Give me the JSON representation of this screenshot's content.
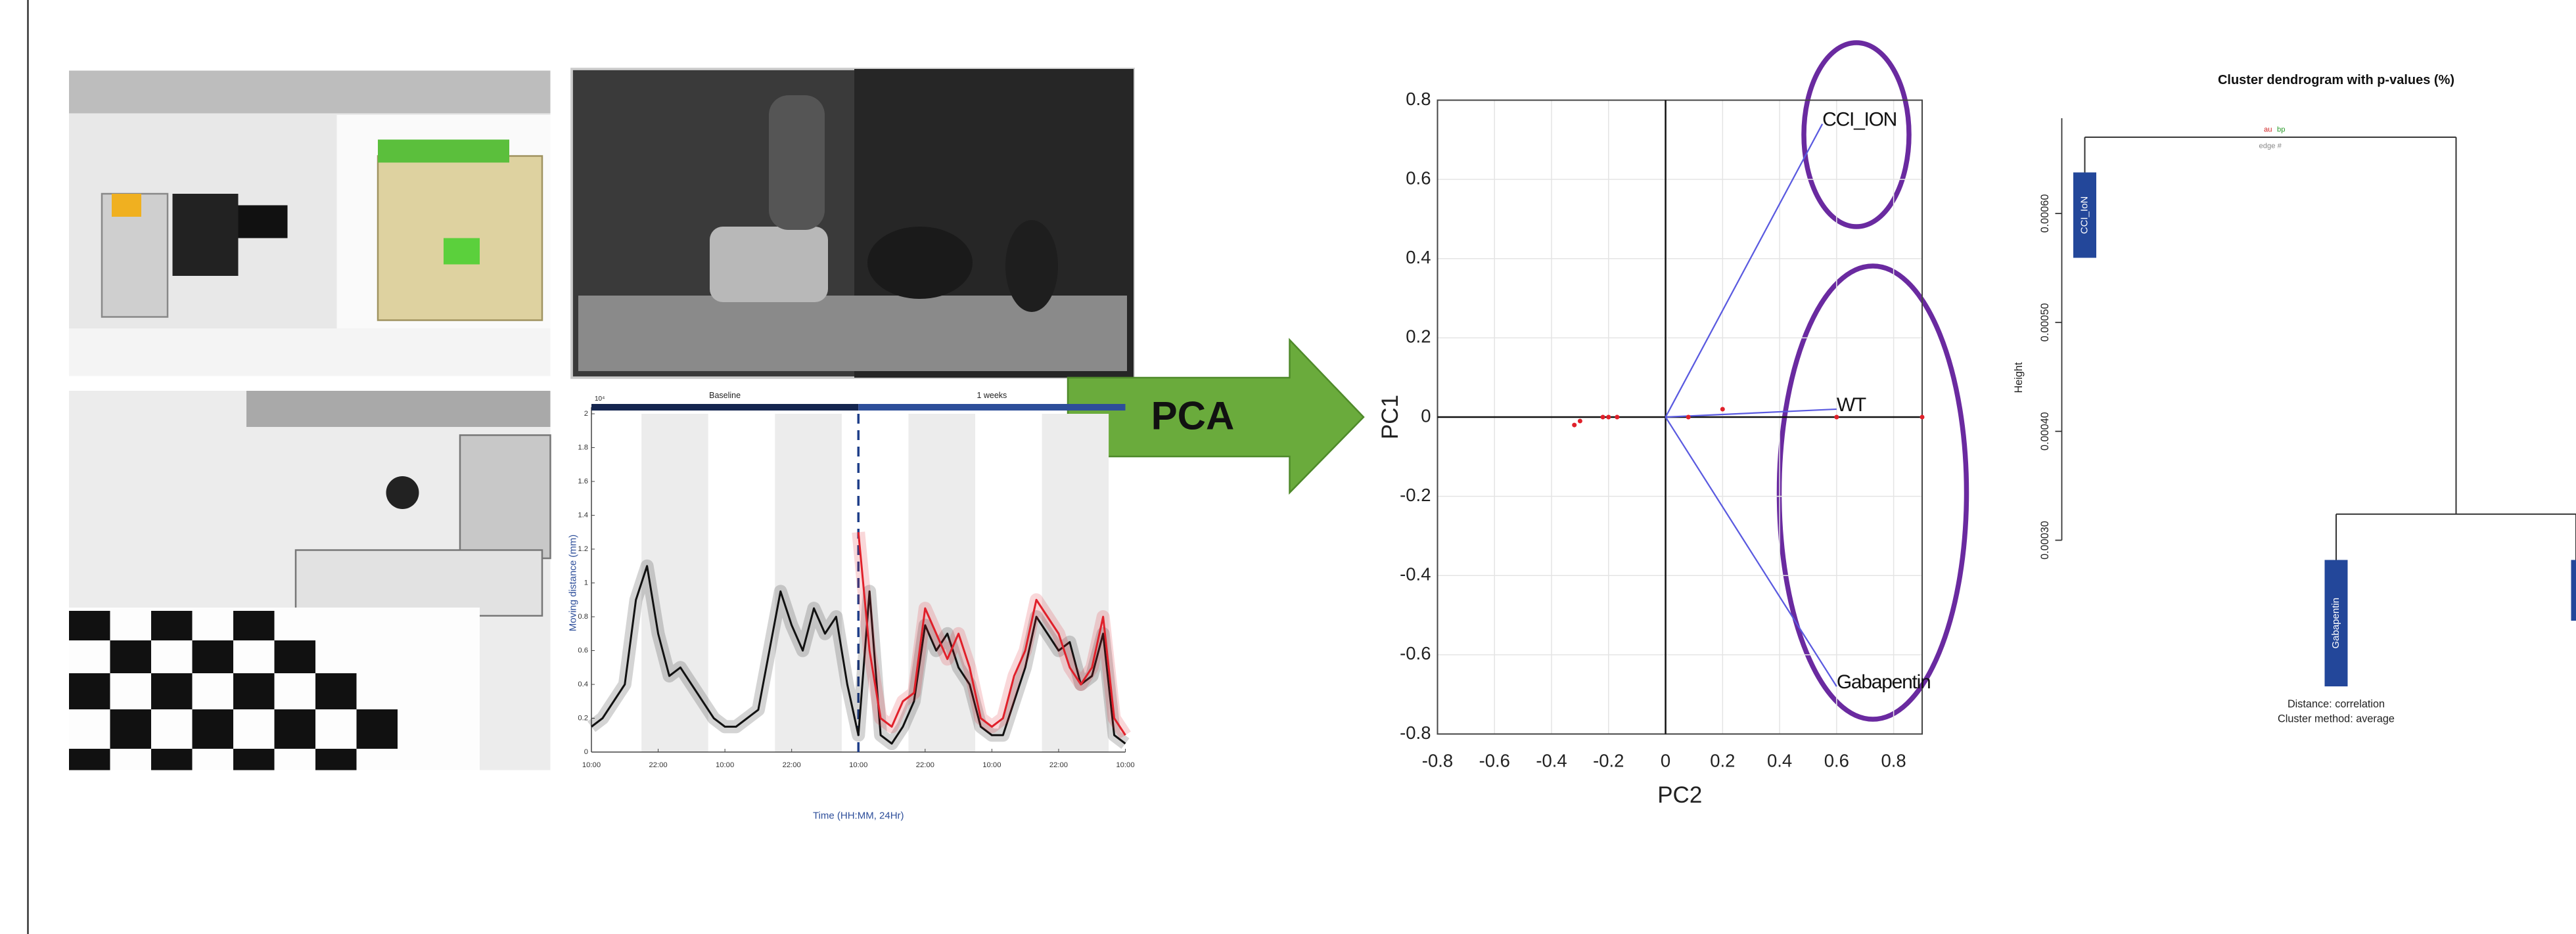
{
  "arrow_label": "PCA",
  "chart_data": [
    {
      "type": "line",
      "phases": [
        {
          "label": "Baseline",
          "start": 0,
          "end": 48
        },
        {
          "label": "1 weeks",
          "start": 48,
          "end": 96
        }
      ],
      "y_scale_label": "10⁴",
      "ylabel": "Moving distance (mm)",
      "xlabel": "Time (HH:MM, 24Hr)",
      "xlim": [
        0,
        96
      ],
      "ylim": [
        0,
        2
      ],
      "xticks": [
        {
          "value": 0,
          "label": "10:00"
        },
        {
          "value": 12,
          "label": "22:00"
        },
        {
          "value": 24,
          "label": "10:00"
        },
        {
          "value": 36,
          "label": "22:00"
        },
        {
          "value": 48,
          "label": "10:00"
        },
        {
          "value": 60,
          "label": "22:00"
        },
        {
          "value": 72,
          "label": "10:00"
        },
        {
          "value": 84,
          "label": "22:00"
        },
        {
          "value": 96,
          "label": "10:00"
        }
      ],
      "yticks": [
        0,
        0.2,
        0.4,
        0.6,
        0.8,
        1,
        1.2,
        1.4,
        1.6,
        1.8,
        2
      ],
      "night_bands": [
        [
          9,
          21
        ],
        [
          33,
          45
        ],
        [
          57,
          69
        ],
        [
          81,
          93
        ]
      ],
      "event_x": 48,
      "x": [
        0,
        2,
        4,
        6,
        8,
        10,
        12,
        14,
        16,
        18,
        20,
        22,
        24,
        26,
        28,
        30,
        32,
        34,
        36,
        38,
        40,
        42,
        44,
        46,
        48,
        50,
        52,
        54,
        56,
        58,
        60,
        62,
        64,
        66,
        68,
        70,
        72,
        74,
        76,
        78,
        80,
        82,
        84,
        86,
        88,
        90,
        92,
        94,
        96
      ],
      "series": [
        {
          "color": "#111111",
          "values": [
            0.15,
            0.2,
            0.3,
            0.4,
            0.9,
            1.1,
            0.7,
            0.45,
            0.5,
            0.4,
            0.3,
            0.2,
            0.15,
            0.15,
            0.2,
            0.25,
            0.6,
            0.95,
            0.75,
            0.6,
            0.85,
            0.7,
            0.8,
            0.4,
            0.1,
            0.95,
            0.1,
            0.05,
            0.15,
            0.3,
            0.75,
            0.6,
            0.7,
            0.5,
            0.4,
            0.15,
            0.1,
            0.1,
            0.3,
            0.5,
            0.8,
            0.7,
            0.6,
            0.65,
            0.4,
            0.45,
            0.7,
            0.1,
            0.05
          ]
        },
        {
          "color": "#e0202a",
          "values": [
            null,
            null,
            null,
            null,
            null,
            null,
            null,
            null,
            null,
            null,
            null,
            null,
            null,
            null,
            null,
            null,
            null,
            null,
            null,
            null,
            null,
            null,
            null,
            null,
            1.3,
            0.6,
            0.2,
            0.15,
            0.3,
            0.35,
            0.85,
            0.7,
            0.55,
            0.7,
            0.5,
            0.2,
            0.15,
            0.2,
            0.45,
            0.6,
            0.9,
            0.8,
            0.7,
            0.5,
            0.4,
            0.5,
            0.8,
            0.2,
            0.1
          ]
        }
      ]
    },
    {
      "type": "biplot",
      "xlabel": "PC2",
      "ylabel": "PC1",
      "xlim": [
        -0.8,
        0.9
      ],
      "ylim": [
        -0.8,
        0.8
      ],
      "xticks": [
        -0.8,
        -0.6,
        -0.4,
        -0.2,
        0,
        0.2,
        0.4,
        0.6,
        0.8
      ],
      "yticks": [
        -0.8,
        -0.6,
        -0.4,
        -0.2,
        0,
        0.2,
        0.4,
        0.6,
        0.8
      ],
      "vectors": [
        {
          "label": "CCI_ION",
          "x": 0.55,
          "y": 0.74
        },
        {
          "label": "WT",
          "x": 0.6,
          "y": 0.02
        },
        {
          "label": "Gabapentin",
          "x": 0.6,
          "y": -0.68
        }
      ],
      "vector_color": "#5a5ae0",
      "points": {
        "color": "#e0202a",
        "x": [
          -0.32,
          -0.3,
          -0.22,
          -0.2,
          -0.17,
          0.08,
          0.2,
          0.6,
          0.9
        ],
        "y": [
          -0.02,
          -0.01,
          0,
          0,
          0,
          0,
          0.02,
          0,
          0
        ]
      }
    },
    {
      "type": "dendrogram",
      "title": "Cluster dendrogram with p-values (%)",
      "ylabel": "Height",
      "ylim": [
        0.0003,
        0.0006
      ],
      "yticks": [
        {
          "value": 0.0003,
          "label": "0.00030"
        },
        {
          "value": 0.0004,
          "label": "0.00040"
        },
        {
          "value": 0.0005,
          "label": "0.00050"
        },
        {
          "value": 0.0006,
          "label": "0.00060"
        }
      ],
      "leaves": [
        "CCI_IoN",
        "Gabapentin",
        null
      ],
      "merge_heights": [
        0.000324,
        0.00067
      ],
      "top_labels": {
        "au": "au",
        "bp": "bp",
        "edge": "edge #"
      },
      "notes": [
        "Distance:  correlation",
        "Cluster method: average"
      ]
    }
  ]
}
